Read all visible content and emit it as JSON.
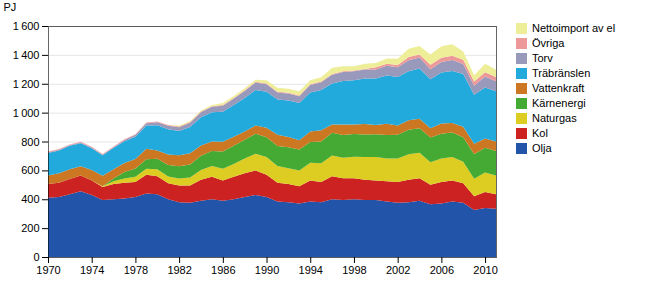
{
  "chart_data": {
    "type": "area",
    "stacked": true,
    "ylabel": "PJ",
    "grid": true,
    "legend": "right",
    "x": [
      1970,
      1971,
      1972,
      1973,
      1974,
      1975,
      1976,
      1977,
      1978,
      1979,
      1980,
      1981,
      1982,
      1983,
      1984,
      1985,
      1986,
      1987,
      1988,
      1989,
      1990,
      1991,
      1992,
      1993,
      1994,
      1995,
      1996,
      1997,
      1998,
      1999,
      2000,
      2001,
      2002,
      2003,
      2004,
      2005,
      2006,
      2007,
      2008,
      2009,
      2010,
      2011
    ],
    "xlim": [
      1970,
      2011
    ],
    "xticks": [
      1970,
      1974,
      1978,
      1982,
      1986,
      1990,
      1994,
      1998,
      2002,
      2006,
      2010
    ],
    "ylim": [
      0,
      1600
    ],
    "yticks": [
      0,
      200,
      400,
      600,
      800,
      {
        "value": 1000,
        "label": "1 000"
      },
      {
        "value": 1200,
        "label": "1 200"
      },
      {
        "value": 1400,
        "label": "1 400"
      },
      {
        "value": 1600,
        "label": "1 600"
      }
    ],
    "series": [
      {
        "name": "Olja",
        "color": "#2255aa",
        "values": [
          410,
          415,
          435,
          455,
          430,
          395,
          400,
          405,
          415,
          440,
          435,
          400,
          380,
          375,
          390,
          400,
          390,
          400,
          415,
          430,
          415,
          385,
          380,
          370,
          385,
          380,
          400,
          395,
          400,
          395,
          395,
          385,
          375,
          380,
          390,
          365,
          370,
          385,
          375,
          325,
          340,
          335
        ]
      },
      {
        "name": "Kol",
        "color": "#cc2222",
        "values": [
          95,
          100,
          105,
          110,
          100,
          90,
          105,
          110,
          105,
          130,
          125,
          110,
          115,
          120,
          145,
          155,
          140,
          155,
          165,
          170,
          155,
          130,
          125,
          120,
          145,
          140,
          160,
          150,
          145,
          140,
          135,
          140,
          145,
          155,
          155,
          135,
          150,
          145,
          135,
          95,
          110,
          100
        ]
      },
      {
        "name": "Naturgas",
        "color": "#ddcc22",
        "values": [
          0,
          0,
          0,
          0,
          0,
          5,
          20,
          28,
          35,
          42,
          48,
          48,
          48,
          55,
          68,
          75,
          82,
          90,
          102,
          115,
          122,
          115,
          110,
          110,
          122,
          130,
          143,
          143,
          150,
          157,
          163,
          157,
          163,
          177,
          177,
          157,
          163,
          163,
          150,
          122,
          136,
          130
        ]
      },
      {
        "name": "Kärnenergi",
        "color": "#44aa33",
        "values": [
          0,
          0,
          0,
          0,
          0,
          0,
          18,
          45,
          58,
          65,
          72,
          80,
          85,
          90,
          98,
          105,
          118,
          125,
          130,
          138,
          138,
          138,
          145,
          145,
          145,
          150,
          157,
          157,
          157,
          157,
          157,
          163,
          163,
          170,
          170,
          170,
          170,
          170,
          170,
          170,
          170,
          170
        ]
      },
      {
        "name": "Vattenkraft",
        "color": "#cc7722",
        "values": [
          60,
          65,
          68,
          63,
          72,
          72,
          65,
          63,
          65,
          72,
          58,
          72,
          76,
          78,
          72,
          65,
          68,
          63,
          58,
          58,
          65,
          78,
          72,
          63,
          72,
          78,
          58,
          72,
          65,
          72,
          65,
          78,
          65,
          65,
          65,
          65,
          72,
          65,
          72,
          72,
          65,
          65
        ]
      },
      {
        "name": "Träbränslen",
        "color": "#22aadd",
        "values": [
          155,
          158,
          162,
          160,
          152,
          142,
          148,
          150,
          155,
          162,
          175,
          175,
          168,
          182,
          195,
          202,
          208,
          220,
          232,
          245,
          250,
          245,
          252,
          258,
          270,
          278,
          283,
          302,
          308,
          315,
          322,
          335,
          335,
          340,
          348,
          340,
          353,
          360,
          365,
          340,
          353,
          348
        ]
      },
      {
        "name": "Torv",
        "color": "#9999bb",
        "values": [
          5,
          5,
          5,
          5,
          5,
          5,
          5,
          10,
          13,
          16,
          20,
          24,
          27,
          30,
          34,
          38,
          41,
          44,
          48,
          52,
          52,
          48,
          48,
          48,
          52,
          55,
          62,
          62,
          62,
          62,
          62,
          66,
          69,
          76,
          76,
          69,
          72,
          76,
          69,
          62,
          76,
          69
        ]
      },
      {
        "name": "Övriga",
        "color": "#ee9999",
        "values": [
          5,
          5,
          5,
          5,
          5,
          5,
          5,
          5,
          5,
          5,
          5,
          5,
          5,
          5,
          5,
          5,
          5,
          5,
          5,
          5,
          5,
          5,
          5,
          5,
          5,
          5,
          5,
          5,
          5,
          5,
          15,
          15,
          15,
          22,
          22,
          30,
          30,
          30,
          30,
          30,
          30,
          30
        ]
      },
      {
        "name": "Nettoimport av el",
        "color": "#eeee99",
        "values": [
          0,
          0,
          0,
          0,
          0,
          0,
          0,
          0,
          0,
          0,
          0,
          0,
          7,
          7,
          7,
          7,
          14,
          14,
          14,
          14,
          22,
          29,
          29,
          29,
          29,
          29,
          43,
          36,
          29,
          36,
          29,
          36,
          43,
          58,
          58,
          72,
          80,
          80,
          58,
          43,
          58,
          50
        ]
      }
    ]
  }
}
